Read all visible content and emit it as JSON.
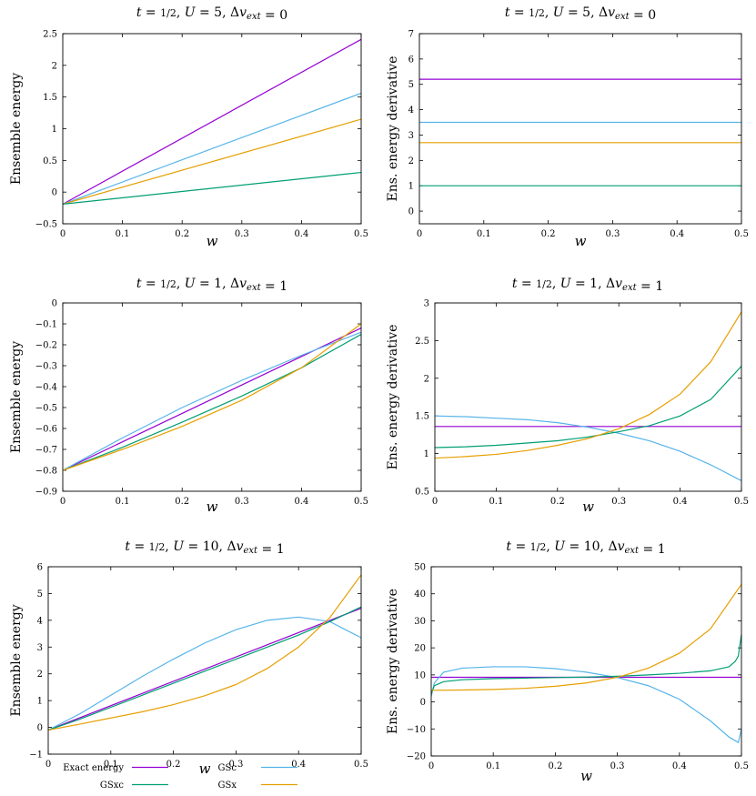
{
  "colors": {
    "exact": "#9400d3",
    "gsxc": "#009e73",
    "gsc": "#56b4e9",
    "gsx": "#e69f00"
  },
  "legend": [
    {
      "key": "exact",
      "label": "Exact energy"
    },
    {
      "key": "gsc",
      "label": "GSc"
    },
    {
      "key": "gsxc",
      "label": "GSxc"
    },
    {
      "key": "gsx",
      "label": "GSx"
    }
  ],
  "chart_data": [
    {
      "type": "line",
      "title": "t = 1/2, U = 5, Δv_ext = 0",
      "ylabel": "Ensemble energy",
      "xlabel": "w",
      "xlim": [
        0,
        0.5
      ],
      "ylim": [
        -0.5,
        2.5
      ],
      "xticks": [
        "0",
        "0.1",
        "0.2",
        "0.3",
        "0.4",
        "0.5"
      ],
      "yticks": [
        "−0.5",
        "0",
        "0.5",
        "1",
        "1.5",
        "2",
        "2.5"
      ],
      "series": [
        {
          "key": "exact",
          "x": [
            0,
            0.5
          ],
          "y": [
            -0.19,
            2.41
          ]
        },
        {
          "key": "gsc",
          "x": [
            0,
            0.5
          ],
          "y": [
            -0.19,
            1.56
          ]
        },
        {
          "key": "gsx",
          "x": [
            0,
            0.5
          ],
          "y": [
            -0.19,
            1.15
          ]
        },
        {
          "key": "gsxc",
          "x": [
            0,
            0.5
          ],
          "y": [
            -0.19,
            0.31
          ]
        }
      ]
    },
    {
      "type": "line",
      "title": "t = 1/2, U = 5, Δv_ext = 0",
      "ylabel": "Ens. energy derivative",
      "xlabel": "w",
      "xlim": [
        0,
        0.5
      ],
      "ylim": [
        -0.5,
        7
      ],
      "xticks": [
        "0",
        "0.1",
        "0.2",
        "0.3",
        "0.4",
        "0.5"
      ],
      "yticks": [
        "0",
        "1",
        "2",
        "3",
        "4",
        "5",
        "6",
        "7"
      ],
      "series": [
        {
          "key": "exact",
          "x": [
            0,
            0.5
          ],
          "y": [
            5.2,
            5.2
          ]
        },
        {
          "key": "gsc",
          "x": [
            0,
            0.5
          ],
          "y": [
            3.5,
            3.5
          ]
        },
        {
          "key": "gsx",
          "x": [
            0,
            0.5
          ],
          "y": [
            2.7,
            2.7
          ]
        },
        {
          "key": "gsxc",
          "x": [
            0,
            0.5
          ],
          "y": [
            1.0,
            1.0
          ]
        }
      ]
    },
    {
      "type": "line",
      "title": "t = 1/2, U = 1, Δv_ext = 1",
      "ylabel": "Ensemble energy",
      "xlabel": "w",
      "xlim": [
        0,
        0.5
      ],
      "ylim": [
        -0.9,
        0
      ],
      "xticks": [
        "0",
        "0.1",
        "0.2",
        "0.3",
        "0.4",
        "0.5"
      ],
      "yticks": [
        "−0.9",
        "−0.8",
        "−0.7",
        "−0.6",
        "−0.5",
        "−0.4",
        "−0.3",
        "−0.2",
        "−0.1",
        "0"
      ],
      "series": [
        {
          "key": "exact",
          "x": [
            0,
            0.5
          ],
          "y": [
            -0.8,
            -0.12
          ]
        },
        {
          "key": "gsc",
          "x": [
            0,
            0.1,
            0.2,
            0.3,
            0.4,
            0.5
          ],
          "y": [
            -0.8,
            -0.645,
            -0.5,
            -0.37,
            -0.25,
            -0.14
          ]
        },
        {
          "key": "gsxc",
          "x": [
            0,
            0.1,
            0.2,
            0.3,
            0.4,
            0.5
          ],
          "y": [
            -0.8,
            -0.69,
            -0.57,
            -0.445,
            -0.31,
            -0.15
          ]
        },
        {
          "key": "gsx",
          "x": [
            0,
            0.1,
            0.2,
            0.3,
            0.4,
            0.5
          ],
          "y": [
            -0.8,
            -0.7,
            -0.59,
            -0.465,
            -0.31,
            -0.1
          ]
        }
      ]
    },
    {
      "type": "line",
      "title": "t = 1/2, U = 1, Δv_ext = 1",
      "ylabel": "Ens. energy derivative",
      "xlabel": "w",
      "xlim": [
        0,
        0.5
      ],
      "ylim": [
        0.5,
        3
      ],
      "xticks": [
        "0",
        "0.1",
        "0.2",
        "0.3",
        "0.4",
        "0.5"
      ],
      "yticks": [
        "0.5",
        "1",
        "1.5",
        "2",
        "2.5",
        "3"
      ],
      "series": [
        {
          "key": "exact",
          "x": [
            0,
            0.5
          ],
          "y": [
            1.36,
            1.36
          ]
        },
        {
          "key": "gsc",
          "x": [
            0,
            0.05,
            0.1,
            0.15,
            0.2,
            0.25,
            0.3,
            0.35,
            0.4,
            0.45,
            0.5
          ],
          "y": [
            1.5,
            1.49,
            1.47,
            1.45,
            1.41,
            1.35,
            1.27,
            1.17,
            1.03,
            0.85,
            0.64
          ]
        },
        {
          "key": "gsxc",
          "x": [
            0,
            0.05,
            0.1,
            0.15,
            0.2,
            0.25,
            0.3,
            0.35,
            0.4,
            0.45,
            0.5
          ],
          "y": [
            1.08,
            1.09,
            1.11,
            1.14,
            1.17,
            1.22,
            1.29,
            1.37,
            1.5,
            1.72,
            2.16
          ]
        },
        {
          "key": "gsx",
          "x": [
            0,
            0.05,
            0.1,
            0.15,
            0.2,
            0.25,
            0.3,
            0.35,
            0.4,
            0.45,
            0.5
          ],
          "y": [
            0.94,
            0.96,
            0.99,
            1.04,
            1.11,
            1.2,
            1.33,
            1.52,
            1.79,
            2.22,
            2.88
          ]
        }
      ]
    },
    {
      "type": "line",
      "title": "t = 1/2, U = 10, Δv_ext = 1",
      "ylabel": "Ensemble energy",
      "xlabel": "w",
      "xlim": [
        0,
        0.5
      ],
      "ylim": [
        -1,
        6
      ],
      "xticks": [
        "0",
        "0.1",
        "0.2",
        "0.3",
        "0.4",
        "0.5"
      ],
      "yticks": [
        "−1",
        "0",
        "1",
        "2",
        "3",
        "4",
        "5",
        "6"
      ],
      "series": [
        {
          "key": "exact",
          "x": [
            0,
            0.5
          ],
          "y": [
            -0.1,
            4.45
          ]
        },
        {
          "key": "gsc",
          "x": [
            0,
            0.05,
            0.1,
            0.15,
            0.2,
            0.25,
            0.3,
            0.35,
            0.4,
            0.45,
            0.5
          ],
          "y": [
            -0.1,
            0.5,
            1.2,
            1.9,
            2.55,
            3.15,
            3.65,
            4.0,
            4.12,
            3.95,
            3.35
          ]
        },
        {
          "key": "gsxc",
          "x": [
            0,
            0.05,
            0.1,
            0.15,
            0.2,
            0.25,
            0.3,
            0.35,
            0.4,
            0.45,
            0.5
          ],
          "y": [
            -0.1,
            0.3,
            0.75,
            1.2,
            1.65,
            2.1,
            2.55,
            3.0,
            3.45,
            3.95,
            4.5
          ]
        },
        {
          "key": "gsx",
          "x": [
            0,
            0.05,
            0.1,
            0.15,
            0.2,
            0.25,
            0.3,
            0.35,
            0.4,
            0.45,
            0.5
          ],
          "y": [
            -0.1,
            0.12,
            0.35,
            0.58,
            0.85,
            1.18,
            1.6,
            2.2,
            3.0,
            4.1,
            5.7
          ]
        }
      ]
    },
    {
      "type": "line",
      "title": "t = 1/2, U = 10, Δv_ext = 1",
      "ylabel": "Ens. energy derivative",
      "xlabel": "w",
      "xlim": [
        0,
        0.5
      ],
      "ylim": [
        -20,
        50
      ],
      "xticks": [
        "0",
        "0.1",
        "0.2",
        "0.3",
        "0.4",
        "0.5"
      ],
      "yticks": [
        "−20",
        "−10",
        "0",
        "10",
        "20",
        "30",
        "40",
        "50"
      ],
      "series": [
        {
          "key": "exact",
          "x": [
            0,
            0.5
          ],
          "y": [
            9.1,
            9.1
          ]
        },
        {
          "key": "gsc",
          "x": [
            0,
            0.005,
            0.02,
            0.05,
            0.1,
            0.15,
            0.2,
            0.25,
            0.3,
            0.35,
            0.4,
            0.45,
            0.48,
            0.495,
            0.5
          ],
          "y": [
            2,
            7,
            11,
            12.5,
            13,
            13,
            12.3,
            11,
            9,
            6,
            1,
            -7,
            -13,
            -15,
            -10
          ]
        },
        {
          "key": "gsxc",
          "x": [
            0,
            0.005,
            0.02,
            0.05,
            0.1,
            0.15,
            0.2,
            0.25,
            0.3,
            0.35,
            0.4,
            0.45,
            0.48,
            0.49,
            0.495,
            0.5
          ],
          "y": [
            3,
            6,
            7.5,
            8.2,
            8.6,
            8.8,
            9.0,
            9.2,
            9.5,
            10.0,
            10.6,
            11.5,
            13,
            15,
            17,
            25
          ]
        },
        {
          "key": "gsx",
          "x": [
            0,
            0.05,
            0.1,
            0.15,
            0.2,
            0.25,
            0.3,
            0.35,
            0.4,
            0.45,
            0.5
          ],
          "y": [
            4.3,
            4.4,
            4.6,
            5.0,
            5.8,
            7.0,
            9.1,
            12.5,
            18.0,
            27.0,
            43.5
          ]
        }
      ]
    }
  ]
}
